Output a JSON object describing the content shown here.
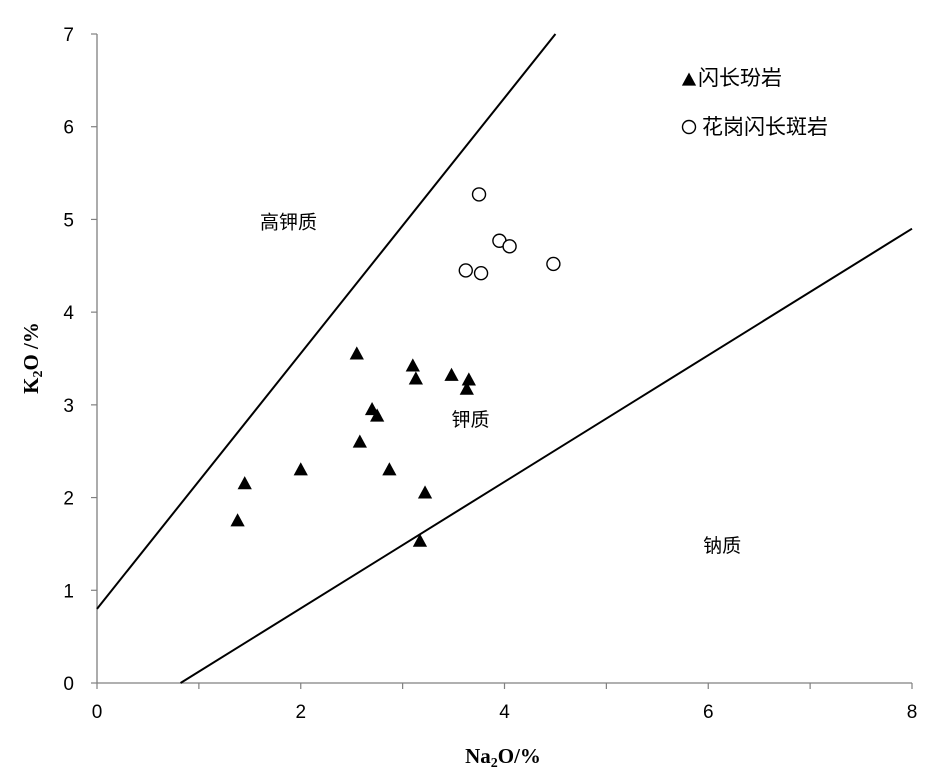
{
  "chart_data": {
    "type": "scatter",
    "title": "",
    "xlabel": {
      "main": "Na",
      "sub": "2",
      "rest": "O/%"
    },
    "ylabel": {
      "main": "K",
      "sub": "2",
      "rest": "O /%"
    },
    "xlim": [
      0,
      8
    ],
    "ylim": [
      0,
      7
    ],
    "xticks": [
      "0",
      "2",
      "4",
      "6",
      "8"
    ],
    "yticks": [
      "0",
      "1",
      "2",
      "3",
      "4",
      "5",
      "6",
      "7"
    ],
    "grid": false,
    "legend_position": "top-right",
    "series": [
      {
        "name": "闪长玢岩",
        "marker": "filled-triangle",
        "points": [
          [
            1.38,
            1.75
          ],
          [
            1.45,
            2.15
          ],
          [
            2.0,
            2.3
          ],
          [
            2.55,
            3.55
          ],
          [
            2.58,
            2.6
          ],
          [
            2.7,
            2.95
          ],
          [
            2.75,
            2.88
          ],
          [
            2.87,
            2.3
          ],
          [
            3.1,
            3.42
          ],
          [
            3.13,
            3.28
          ],
          [
            3.17,
            1.53
          ],
          [
            3.22,
            2.05
          ],
          [
            3.48,
            3.32
          ],
          [
            3.63,
            3.17
          ],
          [
            3.65,
            3.27
          ]
        ]
      },
      {
        "name": "花岗闪长斑岩",
        "marker": "open-circle",
        "points": [
          [
            3.62,
            4.45
          ],
          [
            3.75,
            5.27
          ],
          [
            3.77,
            4.42
          ],
          [
            3.95,
            4.77
          ],
          [
            4.05,
            4.71
          ],
          [
            4.48,
            4.52
          ]
        ]
      }
    ],
    "boundary_lines": [
      {
        "from": [
          0,
          0.8
        ],
        "to": [
          4.5,
          7.0
        ]
      },
      {
        "from": [
          0.82,
          0
        ],
        "to": [
          8.0,
          4.9
        ]
      }
    ],
    "region_labels": [
      {
        "text": "高钾质",
        "x": 1.6,
        "y": 4.98
      },
      {
        "text": "钾质",
        "x": 3.48,
        "y": 2.85
      },
      {
        "text": "钠质",
        "x": 5.95,
        "y": 1.49
      }
    ]
  }
}
